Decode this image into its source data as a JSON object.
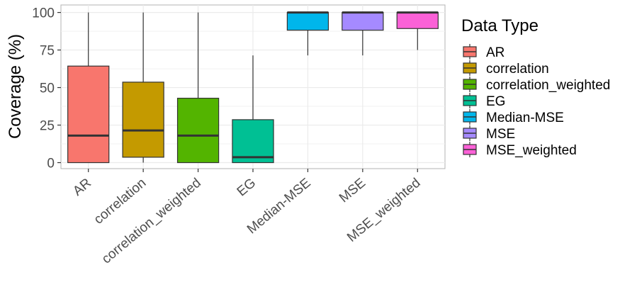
{
  "chart_data": {
    "type": "box",
    "ylabel": "Coverage (%)",
    "xlabel": "",
    "ylim": [
      -4,
      105
    ],
    "yticks": [
      "0",
      "25",
      "50",
      "75",
      "100"
    ],
    "legend_title": "Data Type",
    "legend_position": "right",
    "grid": true,
    "categories": [
      "AR",
      "correlation",
      "correlation_weighted",
      "EG",
      "Median-MSE",
      "MSE",
      "MSE_weighted"
    ],
    "series": [
      {
        "name": "AR",
        "color": "#F8766D",
        "min": 0,
        "q1": 0,
        "median": 18,
        "q3": 64.3,
        "max": 100
      },
      {
        "name": "correlation",
        "color": "#C49A00",
        "min": 0,
        "q1": 3.6,
        "median": 21.4,
        "q3": 53.6,
        "max": 100
      },
      {
        "name": "correlation_weighted",
        "color": "#53B400",
        "min": 0,
        "q1": 0,
        "median": 18,
        "q3": 42.9,
        "max": 100
      },
      {
        "name": "EG",
        "color": "#00C094",
        "min": 0,
        "q1": 0,
        "median": 3.6,
        "q3": 28.6,
        "max": 71.4
      },
      {
        "name": "Median-MSE",
        "color": "#00B6EB",
        "min": 71.4,
        "q1": 88.2,
        "median": 100,
        "q3": 100,
        "max": 100
      },
      {
        "name": "MSE",
        "color": "#A58AFF",
        "min": 71.4,
        "q1": 88.2,
        "median": 100,
        "q3": 100,
        "max": 100
      },
      {
        "name": "MSE_weighted",
        "color": "#FB61D7",
        "min": 75,
        "q1": 89.3,
        "median": 100,
        "q3": 100,
        "max": 100
      }
    ]
  }
}
